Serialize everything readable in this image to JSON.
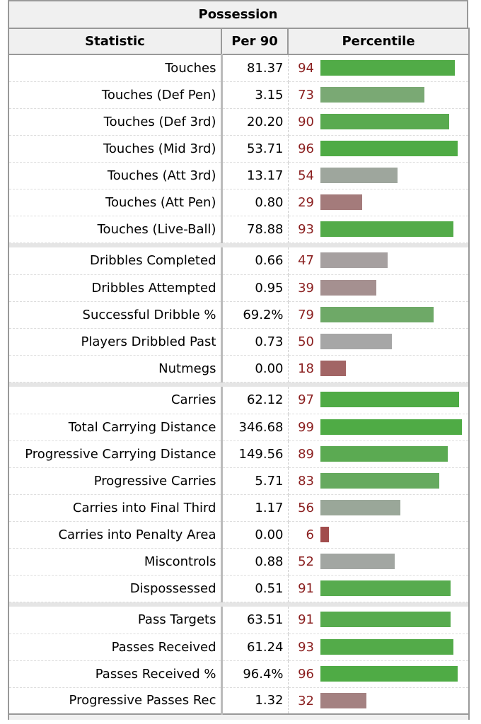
{
  "chart_data": {
    "type": "table",
    "title": "Possession",
    "columns": [
      "Statistic",
      "Per 90",
      "Percentile"
    ],
    "xlim": [
      0,
      100
    ],
    "groups": [
      [
        {
          "stat": "Touches",
          "per90": "81.37",
          "pct": 94
        },
        {
          "stat": "Touches (Def Pen)",
          "per90": "3.15",
          "pct": 73
        },
        {
          "stat": "Touches (Def 3rd)",
          "per90": "20.20",
          "pct": 90
        },
        {
          "stat": "Touches (Mid 3rd)",
          "per90": "53.71",
          "pct": 96
        },
        {
          "stat": "Touches (Att 3rd)",
          "per90": "13.17",
          "pct": 54
        },
        {
          "stat": "Touches (Att Pen)",
          "per90": "0.80",
          "pct": 29
        },
        {
          "stat": "Touches (Live-Ball)",
          "per90": "78.88",
          "pct": 93
        }
      ],
      [
        {
          "stat": "Dribbles Completed",
          "per90": "0.66",
          "pct": 47
        },
        {
          "stat": "Dribbles Attempted",
          "per90": "0.95",
          "pct": 39
        },
        {
          "stat": "Successful Dribble %",
          "per90": "69.2%",
          "pct": 79
        },
        {
          "stat": "Players Dribbled Past",
          "per90": "0.73",
          "pct": 50
        },
        {
          "stat": "Nutmegs",
          "per90": "0.00",
          "pct": 18
        }
      ],
      [
        {
          "stat": "Carries",
          "per90": "62.12",
          "pct": 97
        },
        {
          "stat": "Total Carrying Distance",
          "per90": "346.68",
          "pct": 99
        },
        {
          "stat": "Progressive Carrying Distance",
          "per90": "149.56",
          "pct": 89
        },
        {
          "stat": "Progressive Carries",
          "per90": "5.71",
          "pct": 83
        },
        {
          "stat": "Carries into Final Third",
          "per90": "1.17",
          "pct": 56
        },
        {
          "stat": "Carries into Penalty Area",
          "per90": "0.00",
          "pct": 6
        },
        {
          "stat": "Miscontrols",
          "per90": "0.88",
          "pct": 52
        },
        {
          "stat": "Dispossessed",
          "per90": "0.51",
          "pct": 91
        }
      ],
      [
        {
          "stat": "Pass Targets",
          "per90": "63.51",
          "pct": 91
        },
        {
          "stat": "Passes Received",
          "per90": "61.24",
          "pct": 93
        },
        {
          "stat": "Passes Received %",
          "per90": "96.4%",
          "pct": 96
        },
        {
          "stat": "Progressive Passes Rec",
          "per90": "1.32",
          "pct": 32
        }
      ]
    ],
    "colors": {
      "percentile_text": "#8b2020",
      "high": "#4fab45",
      "mid": "#a6a6a6",
      "low": "#a14c4c"
    }
  }
}
